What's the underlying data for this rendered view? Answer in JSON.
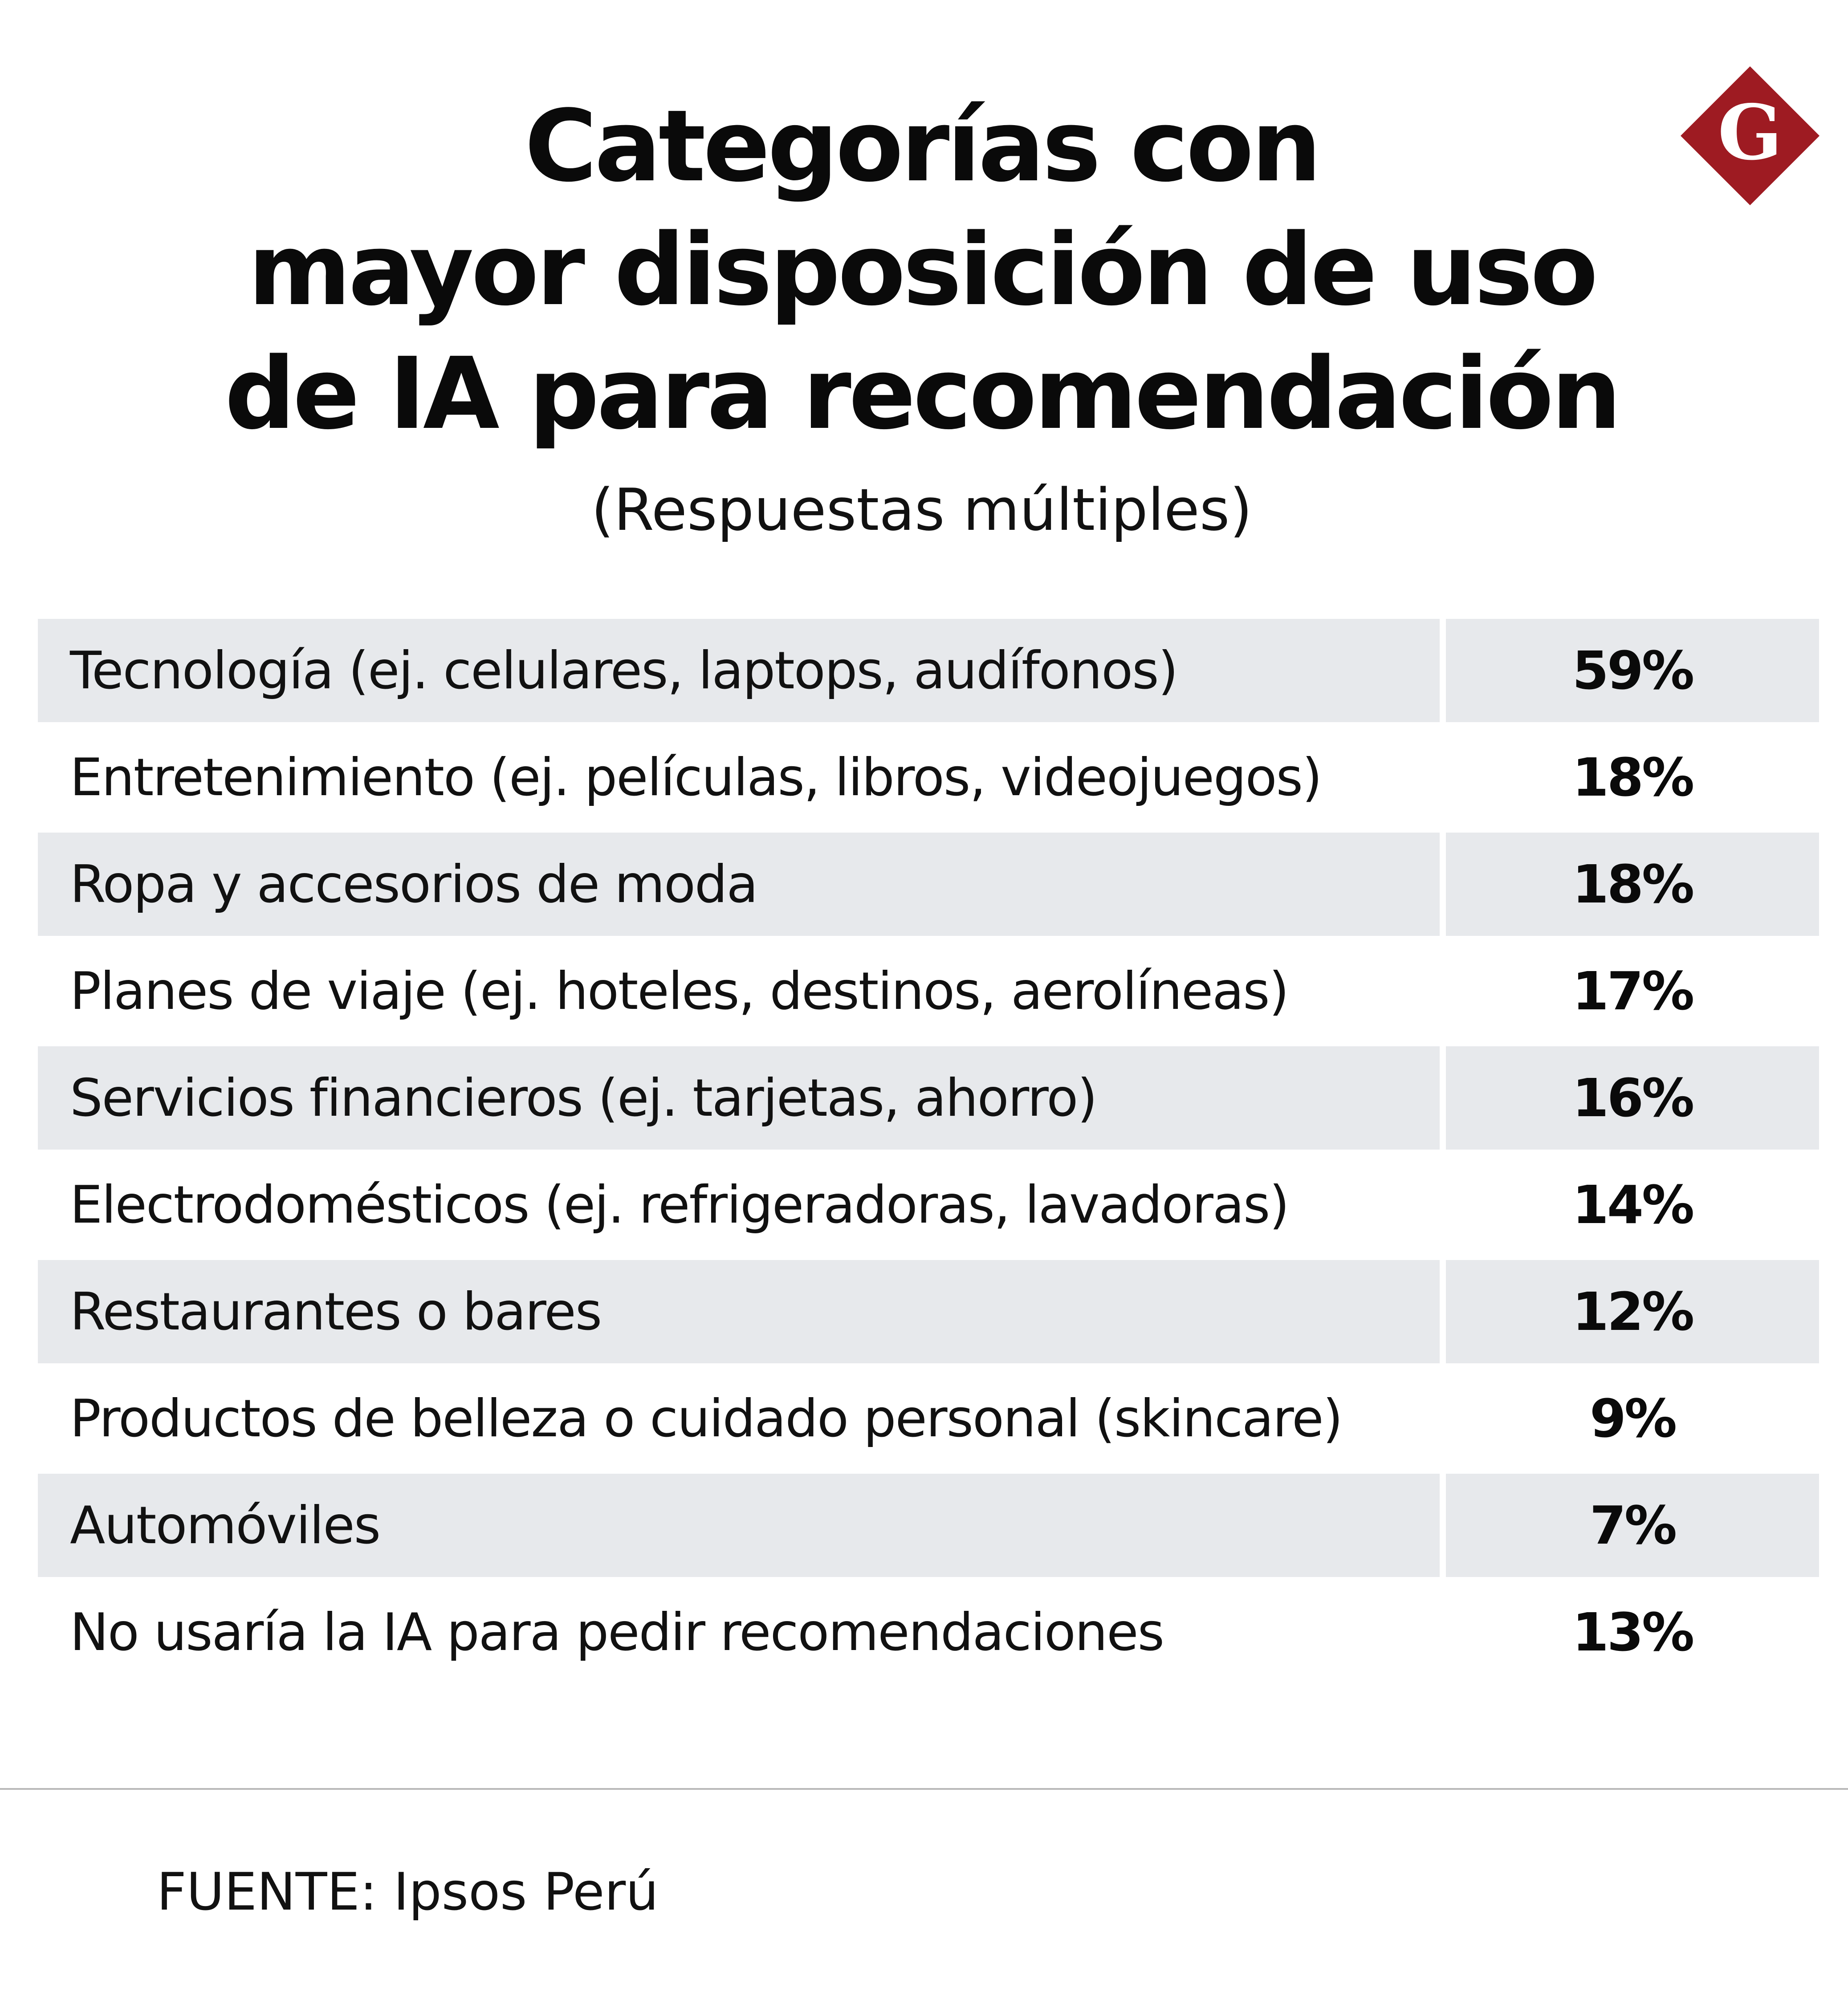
{
  "header": {
    "title_lines": [
      "Categorías con",
      "mayor disposición de uso",
      "de IA para recomendación"
    ],
    "subtitle": "(Respuestas múltiples)"
  },
  "logo": {
    "letter": "G",
    "color": "#9e1b22"
  },
  "chart_data": {
    "type": "table",
    "title": "Categorías con mayor disposición de uso de IA para recomendación",
    "subtitle": "(Respuestas múltiples)",
    "columns": [
      "",
      ""
    ],
    "rows": [
      {
        "label": "Tecnología (ej. celulares, laptops, audífonos)",
        "value": 59,
        "display": "59%"
      },
      {
        "label": "Entretenimiento (ej. películas, libros, videojuegos)",
        "value": 18,
        "display": "18%"
      },
      {
        "label": "Ropa y accesorios de moda",
        "value": 18,
        "display": "18%"
      },
      {
        "label": "Planes de viaje (ej. hoteles, destinos, aerolíneas)",
        "value": 17,
        "display": "17%"
      },
      {
        "label": "Servicios financieros (ej. tarjetas, ahorro)",
        "value": 16,
        "display": "16%"
      },
      {
        "label": "Electrodomésticos (ej. refrigeradoras, lavadoras)",
        "value": 14,
        "display": "14%"
      },
      {
        "label": "Restaurantes o bares",
        "value": 12,
        "display": "12%"
      },
      {
        "label": "Productos de belleza o cuidado personal (skincare)",
        "value": 9,
        "display": "9%"
      },
      {
        "label": "Automóviles",
        "value": 7,
        "display": "7%"
      },
      {
        "label": "No usaría la IA para pedir recomendaciones",
        "value": 13,
        "display": "13%"
      }
    ],
    "row_shading": "alternating",
    "shade_color": "#e7e9ec"
  },
  "footer": {
    "source": "FUENTE: Ipsos Perú"
  }
}
